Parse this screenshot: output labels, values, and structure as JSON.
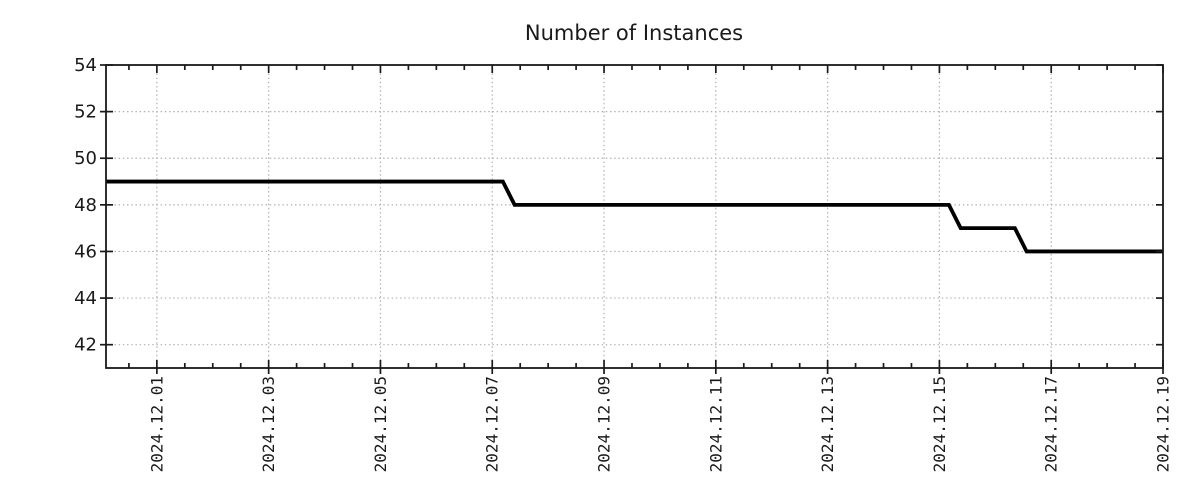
{
  "title": "Number of Instances",
  "chart_data": {
    "type": "line",
    "title": "Number of Instances",
    "xlabel": "",
    "ylabel": "",
    "legend": "none",
    "grid": "dotted major gridlines, both axes",
    "x_axis": {
      "kind": "time",
      "tick_labels": [
        "2024.12.01",
        "2024.12.03",
        "2024.12.05",
        "2024.12.07",
        "2024.12.09",
        "2024.12.11",
        "2024.12.13",
        "2024.12.15",
        "2024.12.17",
        "2024.12.19"
      ],
      "tick_days": [
        0,
        2,
        4,
        6,
        8,
        10,
        12,
        14,
        16,
        18
      ],
      "tick_label_rotation_deg": -90,
      "minor_tick_interval_days": 0.5,
      "range_days": [
        -0.91,
        18
      ],
      "day_zero": "2024.12.01"
    },
    "y_axis": {
      "tick_labels": [
        "42",
        "44",
        "46",
        "48",
        "50",
        "52",
        "54"
      ],
      "ticks": [
        42,
        44,
        46,
        48,
        50,
        52,
        54
      ],
      "range": [
        41,
        54
      ]
    },
    "series": [
      {
        "name": "Number of Instances",
        "color": "#000000",
        "points": [
          {
            "date": "2024-11-30 ~02:00",
            "day": -0.91,
            "value": 49
          },
          {
            "date": "2024-12-07 ~04:30",
            "day": 6.19,
            "value": 49
          },
          {
            "date": "2024-12-07 ~09:30",
            "day": 6.4,
            "value": 48
          },
          {
            "date": "2024-12-15 ~04:00",
            "day": 14.17,
            "value": 48
          },
          {
            "date": "2024-12-15 ~09:00",
            "day": 14.38,
            "value": 47
          },
          {
            "date": "2024-12-16 ~08:30",
            "day": 15.35,
            "value": 47
          },
          {
            "date": "2024-12-16 ~13:30",
            "day": 15.56,
            "value": 46
          },
          {
            "date": "2024-12-19 00:00",
            "day": 18.0,
            "value": 46
          }
        ]
      }
    ],
    "colors": {
      "line": "#000000",
      "grid": "#b2b2b2",
      "axis": "#1a1a1a",
      "text": "#1a1a1a",
      "background": "#ffffff"
    }
  }
}
